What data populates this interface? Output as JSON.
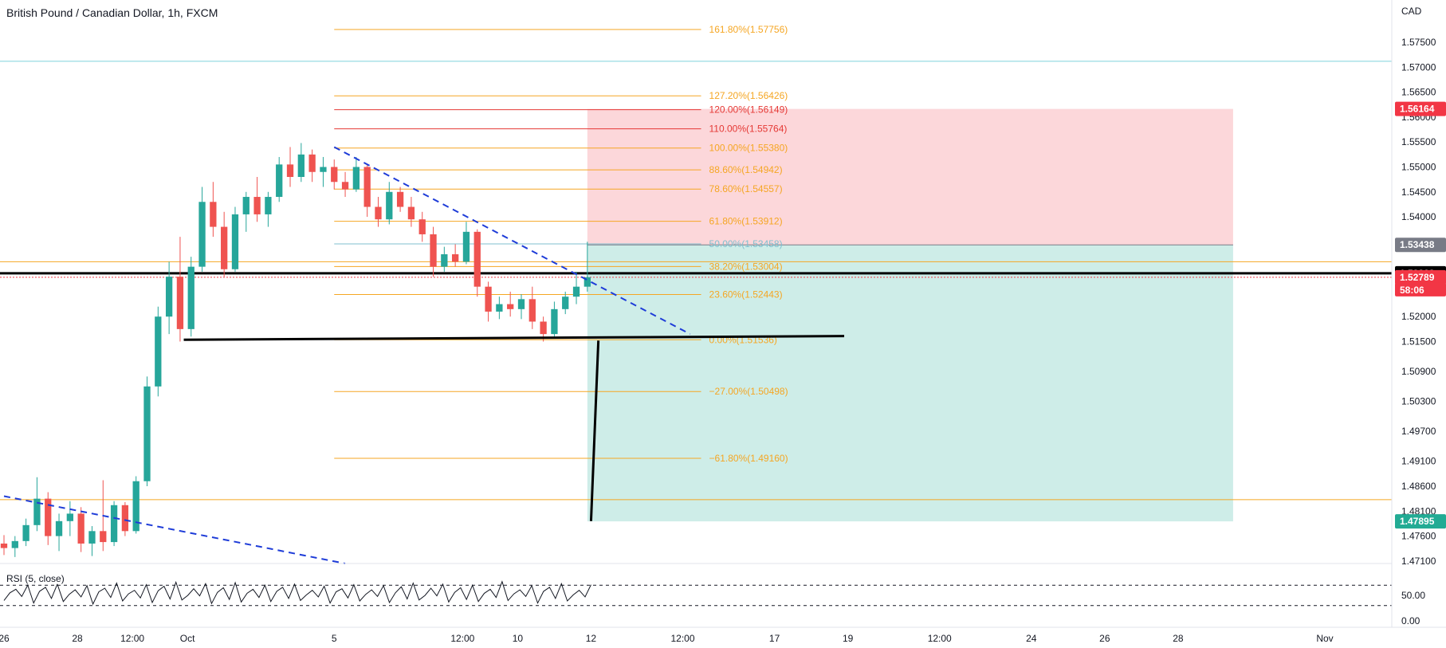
{
  "chart_data": {
    "type": "candlestick",
    "title": "British Pound / Canadian Dollar, 1h, FXCM",
    "currency": "CAD",
    "price_axis_ticks": [
      "1.57500",
      "1.57000",
      "1.56500",
      "1.56000",
      "1.55500",
      "1.55000",
      "1.54500",
      "1.54000",
      "1.52000",
      "1.51500",
      "1.50900",
      "1.50300",
      "1.49700",
      "1.49100",
      "1.48600",
      "1.48100",
      "1.47600",
      "1.47100"
    ],
    "time_axis_ticks": [
      {
        "label": "26",
        "day": 26.0
      },
      {
        "label": "28",
        "day": 28.0
      },
      {
        "label": "12:00",
        "day": 29.5
      },
      {
        "label": "Oct",
        "day": 31.0
      },
      {
        "label": "5",
        "day": 35.0
      },
      {
        "label": "12:00",
        "day": 38.5
      },
      {
        "label": "10",
        "day": 40.0
      },
      {
        "label": "12",
        "day": 42.0
      },
      {
        "label": "12:00",
        "day": 44.5
      },
      {
        "label": "17",
        "day": 47.0
      },
      {
        "label": "19",
        "day": 49.0
      },
      {
        "label": "12:00",
        "day": 51.5
      },
      {
        "label": "24",
        "day": 54.0
      },
      {
        "label": "26",
        "day": 56.0
      },
      {
        "label": "28",
        "day": 58.0
      },
      {
        "label": "Nov",
        "day": 62.0
      }
    ],
    "fib_levels": [
      {
        "label": "161.80%(1.57756)",
        "price": 1.57756,
        "color": "#f5a623"
      },
      {
        "label": "127.20%(1.56426)",
        "price": 1.56426,
        "color": "#f5a623"
      },
      {
        "label": "120.00%(1.56149)",
        "price": 1.56149,
        "color": "#e53935"
      },
      {
        "label": "110.00%(1.55764)",
        "price": 1.55764,
        "color": "#e53935"
      },
      {
        "label": "100.00%(1.55380)",
        "price": 1.5538,
        "color": "#f5a623"
      },
      {
        "label": "88.60%(1.54942)",
        "price": 1.54942,
        "color": "#f5a623"
      },
      {
        "label": "78.60%(1.54557)",
        "price": 1.54557,
        "color": "#f5a623"
      },
      {
        "label": "61.80%(1.53912)",
        "price": 1.53912,
        "color": "#f5a623"
      },
      {
        "label": "50.00%(1.53458)",
        "price": 1.53458,
        "color": "#7fbfcf"
      },
      {
        "label": "38.20%(1.53004)",
        "price": 1.53004,
        "color": "#f5a623"
      },
      {
        "label": "23.60%(1.52443)",
        "price": 1.52443,
        "color": "#f5a623"
      },
      {
        "label": "0.00%(1.51536)",
        "price": 1.51536,
        "color": "#f5a623"
      },
      {
        "label": "−27.00%(1.50498)",
        "price": 1.50498,
        "color": "#f5a623"
      },
      {
        "label": "−61.80%(1.49160)",
        "price": 1.4916,
        "color": "#f5a623"
      }
    ],
    "price_tags": [
      {
        "label": "1.56164",
        "price": 1.56164,
        "bg": "#f23645",
        "fg": "#ffffff"
      },
      {
        "label": "1.53438",
        "price": 1.53438,
        "bg": "#787b86",
        "fg": "#ffffff"
      },
      {
        "label": "1.52868",
        "price": 1.52868,
        "bg": "#000000",
        "fg": "#ffffff"
      },
      {
        "label": "1.52789",
        "price": 1.52789,
        "bg": "#f23645",
        "fg": "#ffffff"
      },
      {
        "label": "1.47895",
        "price": 1.47895,
        "bg": "#22ab94",
        "fg": "#ffffff"
      }
    ],
    "countdown": "58:06",
    "horizontal_lines": [
      {
        "price": 1.5712,
        "color": "#7fd3dc"
      },
      {
        "price": 1.531,
        "color": "#f5a623"
      },
      {
        "price": 1.52868,
        "color": "#000000"
      },
      {
        "price": 1.52789,
        "color": "#f23645",
        "dashed": true
      },
      {
        "price": 1.4833,
        "color": "#f5a623"
      }
    ],
    "position": {
      "entry": 1.53438,
      "stop": 1.56164,
      "target": 1.47895,
      "start_day": 41.9,
      "end_day": 59.5
    },
    "candles": [
      {
        "day": 26.0,
        "o": 1.4745,
        "h": 1.4762,
        "l": 1.4722,
        "c": 1.4736
      },
      {
        "day": 26.3,
        "o": 1.4736,
        "h": 1.476,
        "l": 1.4718,
        "c": 1.475
      },
      {
        "day": 26.6,
        "o": 1.475,
        "h": 1.4795,
        "l": 1.474,
        "c": 1.4782
      },
      {
        "day": 26.9,
        "o": 1.4782,
        "h": 1.4878,
        "l": 1.477,
        "c": 1.4835
      },
      {
        "day": 27.2,
        "o": 1.4835,
        "h": 1.4848,
        "l": 1.4742,
        "c": 1.476
      },
      {
        "day": 27.5,
        "o": 1.476,
        "h": 1.4805,
        "l": 1.473,
        "c": 1.479
      },
      {
        "day": 27.8,
        "o": 1.479,
        "h": 1.483,
        "l": 1.476,
        "c": 1.4805
      },
      {
        "day": 28.1,
        "o": 1.4805,
        "h": 1.4818,
        "l": 1.4728,
        "c": 1.4745
      },
      {
        "day": 28.4,
        "o": 1.4745,
        "h": 1.478,
        "l": 1.472,
        "c": 1.477
      },
      {
        "day": 28.7,
        "o": 1.477,
        "h": 1.4872,
        "l": 1.473,
        "c": 1.4748
      },
      {
        "day": 29.0,
        "o": 1.4748,
        "h": 1.483,
        "l": 1.474,
        "c": 1.4822
      },
      {
        "day": 29.3,
        "o": 1.4822,
        "h": 1.4828,
        "l": 1.476,
        "c": 1.477
      },
      {
        "day": 29.6,
        "o": 1.477,
        "h": 1.488,
        "l": 1.4765,
        "c": 1.487
      },
      {
        "day": 29.9,
        "o": 1.487,
        "h": 1.508,
        "l": 1.486,
        "c": 1.506
      },
      {
        "day": 30.2,
        "o": 1.506,
        "h": 1.522,
        "l": 1.504,
        "c": 1.52
      },
      {
        "day": 30.5,
        "o": 1.52,
        "h": 1.531,
        "l": 1.5165,
        "c": 1.528
      },
      {
        "day": 30.8,
        "o": 1.528,
        "h": 1.536,
        "l": 1.515,
        "c": 1.5175
      },
      {
        "day": 31.1,
        "o": 1.5175,
        "h": 1.532,
        "l": 1.516,
        "c": 1.53
      },
      {
        "day": 31.4,
        "o": 1.53,
        "h": 1.546,
        "l": 1.529,
        "c": 1.543
      },
      {
        "day": 31.7,
        "o": 1.543,
        "h": 1.547,
        "l": 1.536,
        "c": 1.538
      },
      {
        "day": 32.0,
        "o": 1.538,
        "h": 1.541,
        "l": 1.528,
        "c": 1.5295
      },
      {
        "day": 32.3,
        "o": 1.5295,
        "h": 1.542,
        "l": 1.529,
        "c": 1.5405
      },
      {
        "day": 32.6,
        "o": 1.5405,
        "h": 1.545,
        "l": 1.537,
        "c": 1.544
      },
      {
        "day": 32.9,
        "o": 1.544,
        "h": 1.548,
        "l": 1.539,
        "c": 1.5405
      },
      {
        "day": 33.2,
        "o": 1.5405,
        "h": 1.545,
        "l": 1.538,
        "c": 1.544
      },
      {
        "day": 33.5,
        "o": 1.544,
        "h": 1.552,
        "l": 1.543,
        "c": 1.5505
      },
      {
        "day": 33.8,
        "o": 1.5505,
        "h": 1.554,
        "l": 1.546,
        "c": 1.548
      },
      {
        "day": 34.1,
        "o": 1.548,
        "h": 1.5548,
        "l": 1.547,
        "c": 1.5525
      },
      {
        "day": 34.4,
        "o": 1.5525,
        "h": 1.5535,
        "l": 1.547,
        "c": 1.549
      },
      {
        "day": 34.7,
        "o": 1.549,
        "h": 1.552,
        "l": 1.546,
        "c": 1.55
      },
      {
        "day": 35.0,
        "o": 1.55,
        "h": 1.5515,
        "l": 1.5455,
        "c": 1.547
      },
      {
        "day": 35.3,
        "o": 1.547,
        "h": 1.549,
        "l": 1.544,
        "c": 1.5455
      },
      {
        "day": 35.6,
        "o": 1.5455,
        "h": 1.552,
        "l": 1.545,
        "c": 1.55
      },
      {
        "day": 35.9,
        "o": 1.55,
        "h": 1.5505,
        "l": 1.54,
        "c": 1.542
      },
      {
        "day": 36.2,
        "o": 1.542,
        "h": 1.544,
        "l": 1.538,
        "c": 1.5395
      },
      {
        "day": 36.5,
        "o": 1.5395,
        "h": 1.547,
        "l": 1.5385,
        "c": 1.545
      },
      {
        "day": 36.8,
        "o": 1.545,
        "h": 1.546,
        "l": 1.541,
        "c": 1.542
      },
      {
        "day": 37.1,
        "o": 1.542,
        "h": 1.544,
        "l": 1.538,
        "c": 1.5395
      },
      {
        "day": 37.4,
        "o": 1.5395,
        "h": 1.541,
        "l": 1.535,
        "c": 1.5365
      },
      {
        "day": 37.7,
        "o": 1.5365,
        "h": 1.538,
        "l": 1.528,
        "c": 1.53
      },
      {
        "day": 38.0,
        "o": 1.53,
        "h": 1.534,
        "l": 1.529,
        "c": 1.5325
      },
      {
        "day": 38.3,
        "o": 1.5325,
        "h": 1.5345,
        "l": 1.53,
        "c": 1.531
      },
      {
        "day": 38.6,
        "o": 1.531,
        "h": 1.539,
        "l": 1.5305,
        "c": 1.537
      },
      {
        "day": 38.9,
        "o": 1.537,
        "h": 1.5375,
        "l": 1.524,
        "c": 1.526
      },
      {
        "day": 39.2,
        "o": 1.526,
        "h": 1.527,
        "l": 1.519,
        "c": 1.521
      },
      {
        "day": 39.5,
        "o": 1.521,
        "h": 1.524,
        "l": 1.5195,
        "c": 1.5225
      },
      {
        "day": 39.8,
        "o": 1.5225,
        "h": 1.525,
        "l": 1.52,
        "c": 1.5215
      },
      {
        "day": 40.1,
        "o": 1.5215,
        "h": 1.5245,
        "l": 1.5195,
        "c": 1.5235
      },
      {
        "day": 40.4,
        "o": 1.5235,
        "h": 1.526,
        "l": 1.5175,
        "c": 1.519
      },
      {
        "day": 40.7,
        "o": 1.519,
        "h": 1.52,
        "l": 1.515,
        "c": 1.5165
      },
      {
        "day": 41.0,
        "o": 1.5165,
        "h": 1.523,
        "l": 1.516,
        "c": 1.5215
      },
      {
        "day": 41.3,
        "o": 1.5215,
        "h": 1.525,
        "l": 1.5205,
        "c": 1.524
      },
      {
        "day": 41.6,
        "o": 1.524,
        "h": 1.529,
        "l": 1.5225,
        "c": 1.526
      },
      {
        "day": 41.9,
        "o": 1.526,
        "h": 1.535,
        "l": 1.525,
        "c": 1.5279
      }
    ],
    "trendlines": [
      {
        "from": {
          "day": 35.0,
          "price": 1.554
        },
        "to": {
          "day": 44.7,
          "price": 1.5165
        },
        "color": "#1e3cd8",
        "dashed": true
      },
      {
        "from": {
          "day": 26.0,
          "price": 1.484
        },
        "to": {
          "day": 35.3,
          "price": 1.4705
        },
        "color": "#1e3cd8",
        "dashed": true
      }
    ],
    "drawn_lines": [
      {
        "from": {
          "day": 30.9,
          "price": 1.51536
        },
        "to": {
          "day": 48.9,
          "price": 1.5161
        },
        "color": "#000000",
        "width": 3
      },
      {
        "from": {
          "day": 42.2,
          "price": 1.5152
        },
        "to": {
          "day": 42.0,
          "price": 1.479
        },
        "color": "#000000",
        "width": 3
      }
    ],
    "rsi": {
      "label": "RSI (5, close)",
      "ticks": [
        "50.00",
        "0.00"
      ],
      "upper": 70,
      "lower": 30,
      "values": [
        40,
        55,
        62,
        48,
        70,
        35,
        58,
        66,
        44,
        72,
        38,
        52,
        61,
        47,
        69,
        33,
        57,
        64,
        46,
        74,
        39,
        53,
        60,
        45,
        71,
        36,
        59,
        68,
        43,
        76,
        41,
        50,
        63,
        49,
        73,
        34,
        56,
        65,
        42,
        75,
        37,
        54,
        62,
        46,
        70,
        38,
        58,
        66,
        44,
        72,
        40,
        51,
        60,
        47,
        68,
        35,
        57,
        63,
        45,
        71,
        39,
        52,
        61,
        48,
        69,
        36,
        55,
        67,
        43,
        74,
        41,
        50,
        64,
        49,
        72,
        37,
        56,
        65,
        42,
        70,
        38,
        54,
        62,
        46,
        77,
        40,
        53,
        61,
        48,
        69,
        35,
        58,
        66,
        44,
        73,
        39,
        51,
        60,
        47,
        71
      ]
    }
  }
}
